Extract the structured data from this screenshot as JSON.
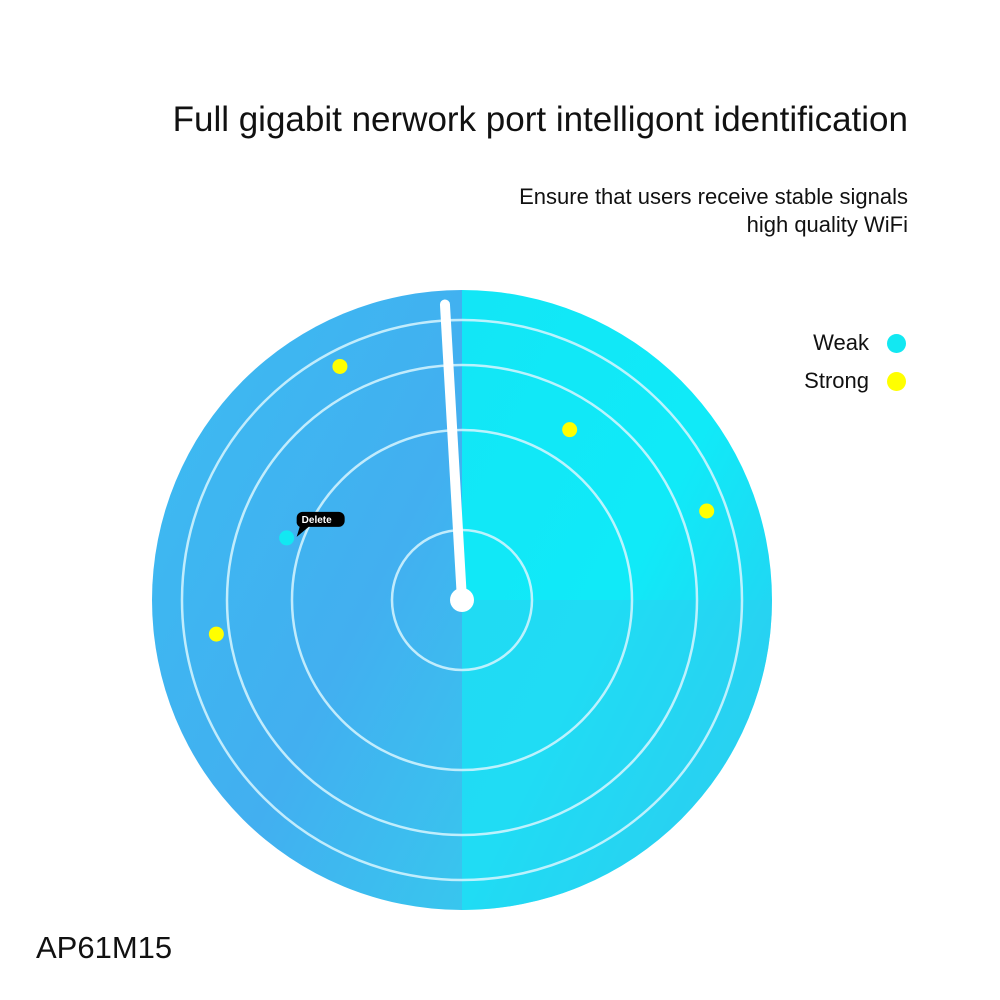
{
  "header": {
    "title": "Full gigabit nerwork port intelligont identification",
    "subtitle_line1": "Ensure that users receive stable signals",
    "subtitle_line2": "high quality WiFi"
  },
  "legend": [
    {
      "label": "Weak",
      "color": "#12e8f2"
    },
    {
      "label": "Strong",
      "color": "#ffff00"
    }
  ],
  "radar": {
    "colors": {
      "left": "#3fb4f0",
      "right": "#10eaf8",
      "rings": "#d8f6ff",
      "sweep": "#ffffff"
    },
    "sweep_bearing_deg": 356.7,
    "points": [
      {
        "type": "Strong",
        "bearing_deg": 332.4,
        "distance": 0.85
      },
      {
        "type": "Strong",
        "bearing_deg": 32.3,
        "distance": 0.65
      },
      {
        "type": "Strong",
        "bearing_deg": 70.0,
        "distance": 0.84
      },
      {
        "type": "Strong",
        "bearing_deg": 262.1,
        "distance": 0.8
      },
      {
        "type": "Weak",
        "bearing_deg": 289.5,
        "distance": 0.6,
        "tooltip": "Delete"
      }
    ]
  },
  "footer": {
    "model": "AP61M15"
  }
}
